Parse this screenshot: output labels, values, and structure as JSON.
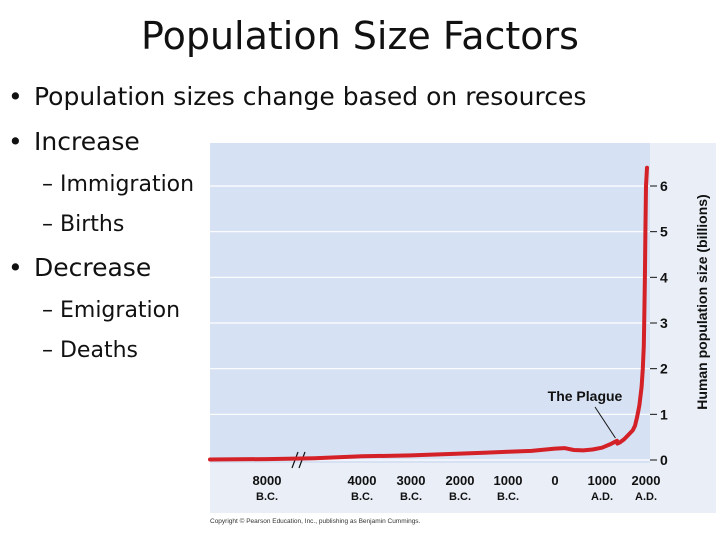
{
  "slide": {
    "title": "Population Size Factors",
    "bullets": [
      {
        "text": "Population sizes change based on resources"
      },
      {
        "text": "Increase",
        "subs": [
          "– Immigration",
          "– Births"
        ]
      },
      {
        "text": "Decrease",
        "subs": [
          "– Emigration",
          "– Deaths"
        ]
      }
    ],
    "bullet_glyph": "•"
  },
  "chart_data": {
    "type": "line",
    "title": "",
    "ylabel": "Human population size (billions)",
    "xlabel": "",
    "ylim": [
      0,
      6.5
    ],
    "yticks": [
      0,
      1,
      2,
      3,
      4,
      5,
      6
    ],
    "grid": "horizontal",
    "axis_side": "right",
    "xticks": [
      {
        "top": "8000",
        "bottom": "B.C."
      },
      {
        "top": "4000",
        "bottom": "B.C."
      },
      {
        "top": "3000",
        "bottom": "B.C."
      },
      {
        "top": "2000",
        "bottom": "B.C."
      },
      {
        "top": "1000",
        "bottom": "B.C."
      },
      {
        "top": "0",
        "bottom": ""
      },
      {
        "top": "1000",
        "bottom": "A.D."
      },
      {
        "top": "2000",
        "bottom": "A.D."
      }
    ],
    "annotation": {
      "text": "The Plague",
      "year": 1350,
      "value": 0.35
    },
    "series": [
      {
        "color": "#d42027",
        "years": [
          -10000,
          -8000,
          -6000,
          -5000,
          -4000,
          -3000,
          -2500,
          -2000,
          -1500,
          -1000,
          -500,
          0,
          200,
          400,
          600,
          800,
          1000,
          1200,
          1300,
          1340,
          1350,
          1400,
          1500,
          1600,
          1700,
          1750,
          1800,
          1850,
          1900,
          1927,
          1950,
          1960,
          1974,
          1987,
          1999,
          2005
        ],
        "values": [
          0.01,
          0.02,
          0.04,
          0.06,
          0.08,
          0.1,
          0.12,
          0.14,
          0.16,
          0.18,
          0.2,
          0.25,
          0.26,
          0.22,
          0.21,
          0.23,
          0.27,
          0.35,
          0.4,
          0.42,
          0.36,
          0.38,
          0.45,
          0.55,
          0.65,
          0.75,
          0.95,
          1.2,
          1.6,
          2.0,
          2.5,
          3.0,
          4.0,
          5.0,
          6.0,
          6.4
        ]
      }
    ],
    "copyright": "Copyright © Pearson Education, Inc., publishing as Benjamin Cummings."
  }
}
